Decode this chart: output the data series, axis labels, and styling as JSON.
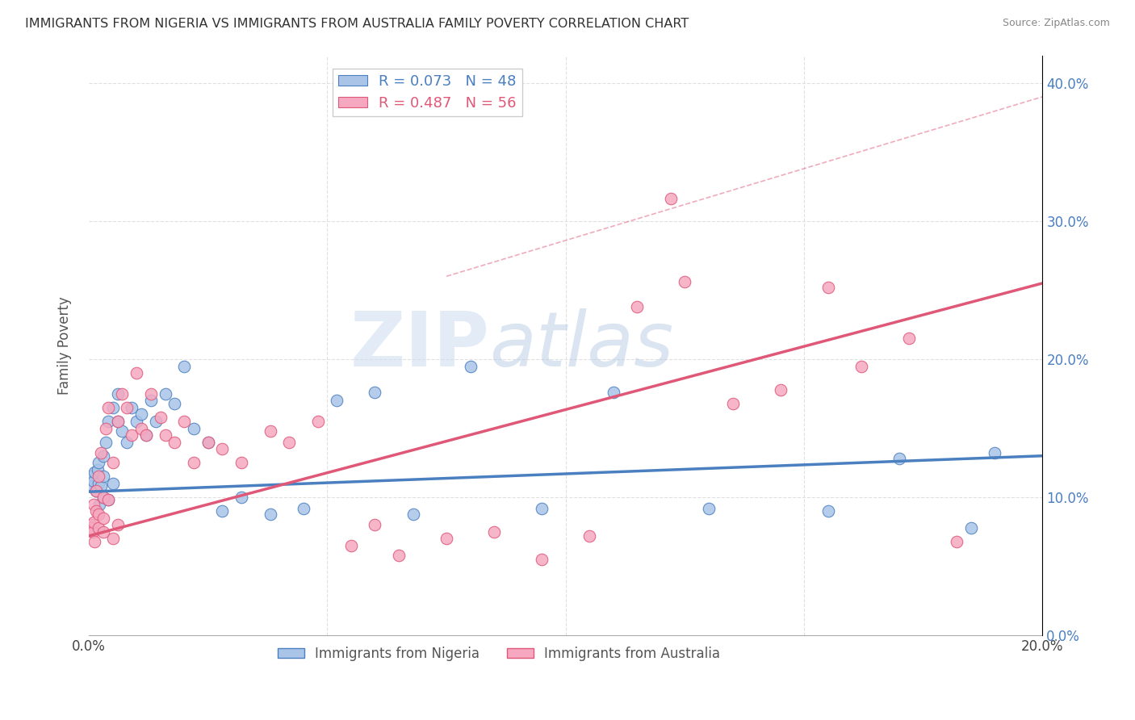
{
  "title": "IMMIGRANTS FROM NIGERIA VS IMMIGRANTS FROM AUSTRALIA FAMILY POVERTY CORRELATION CHART",
  "source": "Source: ZipAtlas.com",
  "ylabel": "Family Poverty",
  "legend_label1": "Immigrants from Nigeria",
  "legend_label2": "Immigrants from Australia",
  "legend_R1": "R = 0.073",
  "legend_N1": "N = 48",
  "legend_R2": "R = 0.487",
  "legend_N2": "N = 56",
  "color1": "#aac4e8",
  "color2": "#f5a8c0",
  "line_color1": "#4a7fc0",
  "line_color2": "#e05878",
  "xlim": [
    0.0,
    0.2
  ],
  "ylim": [
    0.0,
    0.42
  ],
  "nigeria_x": [
    0.0005,
    0.0008,
    0.001,
    0.0012,
    0.0015,
    0.0018,
    0.002,
    0.002,
    0.0022,
    0.0025,
    0.003,
    0.003,
    0.003,
    0.0035,
    0.004,
    0.004,
    0.005,
    0.005,
    0.006,
    0.006,
    0.007,
    0.008,
    0.009,
    0.01,
    0.011,
    0.012,
    0.013,
    0.014,
    0.016,
    0.018,
    0.02,
    0.022,
    0.025,
    0.028,
    0.032,
    0.038,
    0.045,
    0.052,
    0.06,
    0.068,
    0.08,
    0.095,
    0.11,
    0.13,
    0.155,
    0.17,
    0.185,
    0.19
  ],
  "nigeria_y": [
    0.115,
    0.108,
    0.112,
    0.118,
    0.105,
    0.12,
    0.125,
    0.11,
    0.095,
    0.108,
    0.13,
    0.115,
    0.1,
    0.14,
    0.155,
    0.098,
    0.165,
    0.11,
    0.175,
    0.155,
    0.148,
    0.14,
    0.165,
    0.155,
    0.16,
    0.145,
    0.17,
    0.155,
    0.175,
    0.168,
    0.195,
    0.15,
    0.14,
    0.09,
    0.1,
    0.088,
    0.092,
    0.17,
    0.176,
    0.088,
    0.195,
    0.092,
    0.176,
    0.092,
    0.09,
    0.128,
    0.078,
    0.132
  ],
  "australia_x": [
    0.0003,
    0.0005,
    0.0008,
    0.001,
    0.001,
    0.0012,
    0.0015,
    0.0015,
    0.002,
    0.002,
    0.002,
    0.0025,
    0.003,
    0.003,
    0.003,
    0.0035,
    0.004,
    0.004,
    0.005,
    0.005,
    0.006,
    0.006,
    0.007,
    0.008,
    0.009,
    0.01,
    0.011,
    0.012,
    0.013,
    0.015,
    0.016,
    0.018,
    0.02,
    0.022,
    0.025,
    0.028,
    0.032,
    0.038,
    0.042,
    0.048,
    0.055,
    0.06,
    0.065,
    0.075,
    0.085,
    0.095,
    0.105,
    0.115,
    0.125,
    0.135,
    0.145,
    0.155,
    0.162,
    0.172,
    0.182,
    0.122
  ],
  "australia_y": [
    0.08,
    0.078,
    0.075,
    0.082,
    0.095,
    0.068,
    0.09,
    0.105,
    0.078,
    0.115,
    0.088,
    0.132,
    0.075,
    0.1,
    0.085,
    0.15,
    0.165,
    0.098,
    0.07,
    0.125,
    0.155,
    0.08,
    0.175,
    0.165,
    0.145,
    0.19,
    0.15,
    0.145,
    0.175,
    0.158,
    0.145,
    0.14,
    0.155,
    0.125,
    0.14,
    0.135,
    0.125,
    0.148,
    0.14,
    0.155,
    0.065,
    0.08,
    0.058,
    0.07,
    0.075,
    0.055,
    0.072,
    0.238,
    0.256,
    0.168,
    0.178,
    0.252,
    0.195,
    0.215,
    0.068,
    0.316
  ],
  "nig_line_x0": 0.0,
  "nig_line_y0": 0.104,
  "nig_line_x1": 0.2,
  "nig_line_y1": 0.13,
  "aus_line_x0": 0.0,
  "aus_line_y0": 0.072,
  "aus_line_x1": 0.2,
  "aus_line_y1": 0.255,
  "dash_line_x0": 0.075,
  "dash_line_y0": 0.26,
  "dash_line_x1": 0.2,
  "dash_line_y1": 0.39,
  "watermark_top": "ZIP",
  "watermark_bot": "atlas",
  "background_color": "#ffffff",
  "grid_color": "#e0e0e0"
}
